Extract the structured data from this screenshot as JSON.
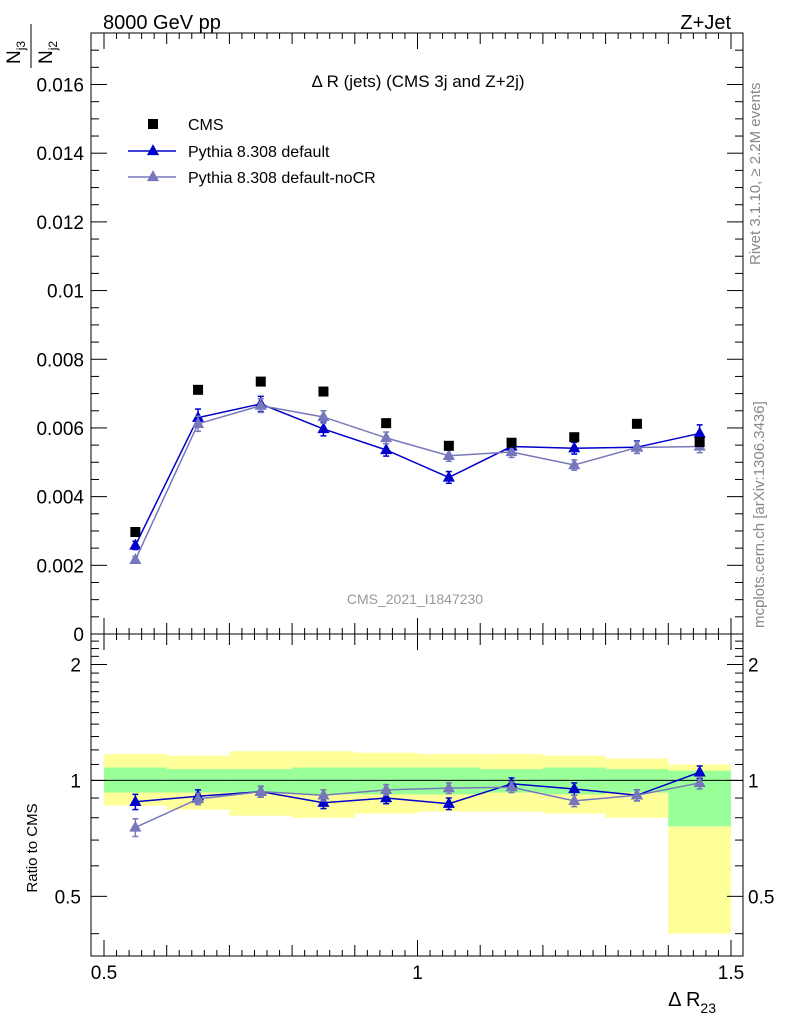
{
  "header": {
    "left": "8000 GeV pp",
    "right": "Z+Jet"
  },
  "side_labels": {
    "rivet": "Rivet 3.1.10, ≥ 2.2M events",
    "mcplots": "mcplots.cern.ch [arXiv:1306.3436]"
  },
  "watermark": "CMS_2021_I1847230",
  "chart_data": {
    "type": "scatter",
    "title": "Δ R (jets) (CMS 3j and Z+2j)",
    "xlabel": "Δ R",
    "xlabel_sub": "23",
    "ylabel_num": "N",
    "ylabel_num_sub": "j3",
    "ylabel_den": "N",
    "ylabel_den_sub": "j2",
    "ratio_ylabel": "Ratio to CMS",
    "xlim": [
      0.5,
      1.5
    ],
    "ylim": [
      0,
      0.0175
    ],
    "ratio_ylim": [
      0.35,
      2.4
    ],
    "x_ticks": [
      0.5,
      1,
      1.5
    ],
    "x_tick_labels": [
      "0.5",
      "1",
      "1.5"
    ],
    "y_ticks": [
      0,
      0.002,
      0.004,
      0.006,
      0.008,
      0.01,
      0.012,
      0.014,
      0.016
    ],
    "y_tick_labels": [
      "0",
      "0.002",
      "0.004",
      "0.006",
      "0.008",
      "0.01",
      "0.012",
      "0.014",
      "0.016"
    ],
    "ratio_ticks": [
      0.5,
      1,
      2
    ],
    "ratio_tick_labels": [
      "0.5",
      "1",
      "2"
    ],
    "x": [
      0.55,
      0.65,
      0.75,
      0.85,
      0.95,
      1.05,
      1.15,
      1.25,
      1.35,
      1.45
    ],
    "bin_edges": [
      0.5,
      0.6,
      0.7,
      0.8,
      0.9,
      1.0,
      1.1,
      1.2,
      1.3,
      1.4,
      1.5
    ],
    "legend_position": "top-left",
    "series": [
      {
        "name": "CMS",
        "marker": "square",
        "color": "#000000",
        "values": [
          0.00297,
          0.00711,
          0.00735,
          0.00706,
          0.00614,
          0.00548,
          0.00557,
          0.00573,
          0.00612,
          0.00559
        ]
      },
      {
        "name": "Pythia 8.308 default",
        "marker": "triangle",
        "color": "#0000cc",
        "values": [
          0.00258,
          0.0063,
          0.0067,
          0.00597,
          0.00536,
          0.00456,
          0.00546,
          0.00541,
          0.00544,
          0.00584
        ],
        "errors": [
          0.00012,
          0.00025,
          0.00022,
          0.0002,
          0.00018,
          0.00017,
          0.00018,
          0.00017,
          0.00018,
          0.00025
        ],
        "ratio": [
          0.88,
          0.91,
          0.935,
          0.875,
          0.9,
          0.87,
          0.98,
          0.95,
          0.915,
          1.05
        ],
        "ratio_errors": [
          0.04,
          0.035,
          0.03,
          0.03,
          0.03,
          0.03,
          0.035,
          0.035,
          0.03,
          0.04
        ]
      },
      {
        "name": "Pythia 8.308 default-noCR",
        "marker": "triangle",
        "color": "#7777bb",
        "values": [
          0.00216,
          0.00612,
          0.00665,
          0.00632,
          0.00571,
          0.00519,
          0.0053,
          0.00492,
          0.00543,
          0.00546
        ],
        "errors": [
          0.0001,
          0.00022,
          0.0002,
          0.00018,
          0.00017,
          0.00016,
          0.00016,
          0.00015,
          0.00017,
          0.00018
        ],
        "ratio": [
          0.755,
          0.895,
          0.935,
          0.915,
          0.945,
          0.955,
          0.96,
          0.885,
          0.915,
          0.985
        ],
        "ratio_errors": [
          0.04,
          0.03,
          0.03,
          0.03,
          0.03,
          0.03,
          0.03,
          0.03,
          0.03,
          0.035
        ]
      }
    ],
    "ratio_bands": {
      "stat": [
        [
          0.93,
          1.08
        ],
        [
          0.93,
          1.07
        ],
        [
          0.93,
          1.07
        ],
        [
          0.92,
          1.08
        ],
        [
          0.92,
          1.08
        ],
        [
          0.92,
          1.08
        ],
        [
          0.93,
          1.07
        ],
        [
          0.92,
          1.08
        ],
        [
          0.93,
          1.07
        ],
        [
          0.76,
          1.06
        ]
      ],
      "total": [
        [
          0.86,
          1.17
        ],
        [
          0.84,
          1.16
        ],
        [
          0.81,
          1.19
        ],
        [
          0.8,
          1.19
        ],
        [
          0.82,
          1.18
        ],
        [
          0.83,
          1.17
        ],
        [
          0.83,
          1.17
        ],
        [
          0.82,
          1.16
        ],
        [
          0.8,
          1.14
        ],
        [
          0.4,
          1.1
        ]
      ]
    }
  }
}
